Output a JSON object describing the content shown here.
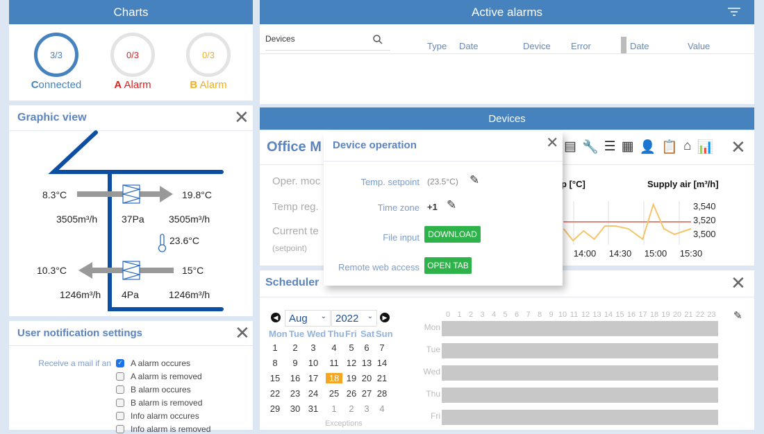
{
  "charts": {
    "title": "Charts",
    "rings": [
      {
        "value": "3/3",
        "label_first": "C",
        "label_rest": "onnected",
        "color": "#4682be",
        "filled": true
      },
      {
        "value": "0/3",
        "label_first": "A",
        "label_rest": " Alarm",
        "color": "#d22",
        "filled": false
      },
      {
        "value": "0/3",
        "label_first": "B",
        "label_rest": " Alarm",
        "color": "#f0b020",
        "filled": false
      }
    ]
  },
  "graphic_view": {
    "title": "Graphic view",
    "outdoor_temp": "8.3°C",
    "supply_temp": "19.8°C",
    "supply_flow_in": "3505m³/h",
    "supply_pressure": "37Pa",
    "supply_flow_out": "3505m³/h",
    "room_temp": "23.6°C",
    "exhaust_temp": "10.3°C",
    "extract_temp": "15°C",
    "exhaust_flow": "1246m³/h",
    "extract_pressure": "4Pa",
    "extract_flow": "1246m³/h"
  },
  "notifications": {
    "title": "User notification settings",
    "label": "Receive a mail if an",
    "options": [
      {
        "label": "A alarm occures",
        "checked": true
      },
      {
        "label": "A alarm is removed",
        "checked": false
      },
      {
        "label": "B alarm occures",
        "checked": false
      },
      {
        "label": "B alarm is removed",
        "checked": false
      },
      {
        "label": "Info alarm occures",
        "checked": false
      },
      {
        "label": "Info alarm is removed",
        "checked": false
      }
    ]
  },
  "alarms": {
    "title": "Active alarms",
    "search_placeholder": "Devices",
    "columns": [
      "Type",
      "Date",
      "Device",
      "Error",
      "Date",
      "Value"
    ]
  },
  "devices": {
    "title": "Devices",
    "device_name": "Office M",
    "rows": [
      "Oper. moc",
      "Temp reg.",
      "Current te",
      "(setpoint)"
    ]
  },
  "device_operation": {
    "title": "Device operation",
    "temp_setpoint_label": "Temp. setpoint",
    "temp_setpoint_value": "(23.5°C)",
    "time_zone_label": "Time zone",
    "time_zone_value": "+1",
    "file_input_label": "File input",
    "download_label": "DOWNLOAD",
    "remote_label": "Remote web access",
    "open_tab_label": "OPEN TAB"
  },
  "chart_data": {
    "type": "line",
    "title_left_partial": "p [°C]",
    "title_right": "Supply air [m³/h]",
    "x_ticks": [
      "14:00",
      "14:30",
      "15:00",
      "15:30"
    ],
    "y_ticks": [
      "3,540",
      "3,520",
      "3,500"
    ],
    "ylim": [
      3480,
      3550
    ],
    "x": [
      "13:42",
      "13:50",
      "13:59",
      "14:08",
      "14:17",
      "14:26",
      "14:37",
      "14:49",
      "14:58",
      "15:07",
      "15:16",
      "15:30"
    ],
    "series": [
      {
        "color": "#f5c469",
        "values": [
          3507,
          3490,
          3504,
          3492,
          3511,
          3511,
          3507,
          3492,
          3542,
          3507,
          3499,
          3507
        ]
      },
      {
        "color": "#e0857a",
        "values": [
          3517,
          3517,
          3517,
          3517,
          3517,
          3517,
          3517,
          3517,
          3517,
          3517,
          3517,
          3517
        ]
      }
    ]
  },
  "scheduler": {
    "title": "Scheduler",
    "month": "Aug",
    "year": "2022",
    "weekdays": [
      "Mon",
      "Tue",
      "Wed",
      "Thu",
      "Fri",
      "Sat",
      "Sun"
    ],
    "weeks": [
      [
        "1",
        "2",
        "3",
        "4",
        "5",
        "6",
        "7"
      ],
      [
        "8",
        "9",
        "10",
        "11",
        "12",
        "13",
        "14"
      ],
      [
        "15",
        "16",
        "17",
        "18",
        "19",
        "20",
        "21"
      ],
      [
        "22",
        "23",
        "24",
        "25",
        "26",
        "27",
        "28"
      ],
      [
        "29",
        "30",
        "31",
        "1",
        "2",
        "3",
        "4"
      ]
    ],
    "selected_day": "18",
    "exceptions_label": "Exceptions",
    "days": [
      "Mon",
      "Tue",
      "Wed",
      "Thu",
      "Fri"
    ],
    "hours": [
      "0",
      "1",
      "2",
      "3",
      "4",
      "5",
      "6",
      "7",
      "8",
      "9",
      "10",
      "11",
      "12",
      "13",
      "14",
      "15",
      "16",
      "17",
      "18",
      "19",
      "20",
      "21",
      "22",
      "23"
    ]
  }
}
